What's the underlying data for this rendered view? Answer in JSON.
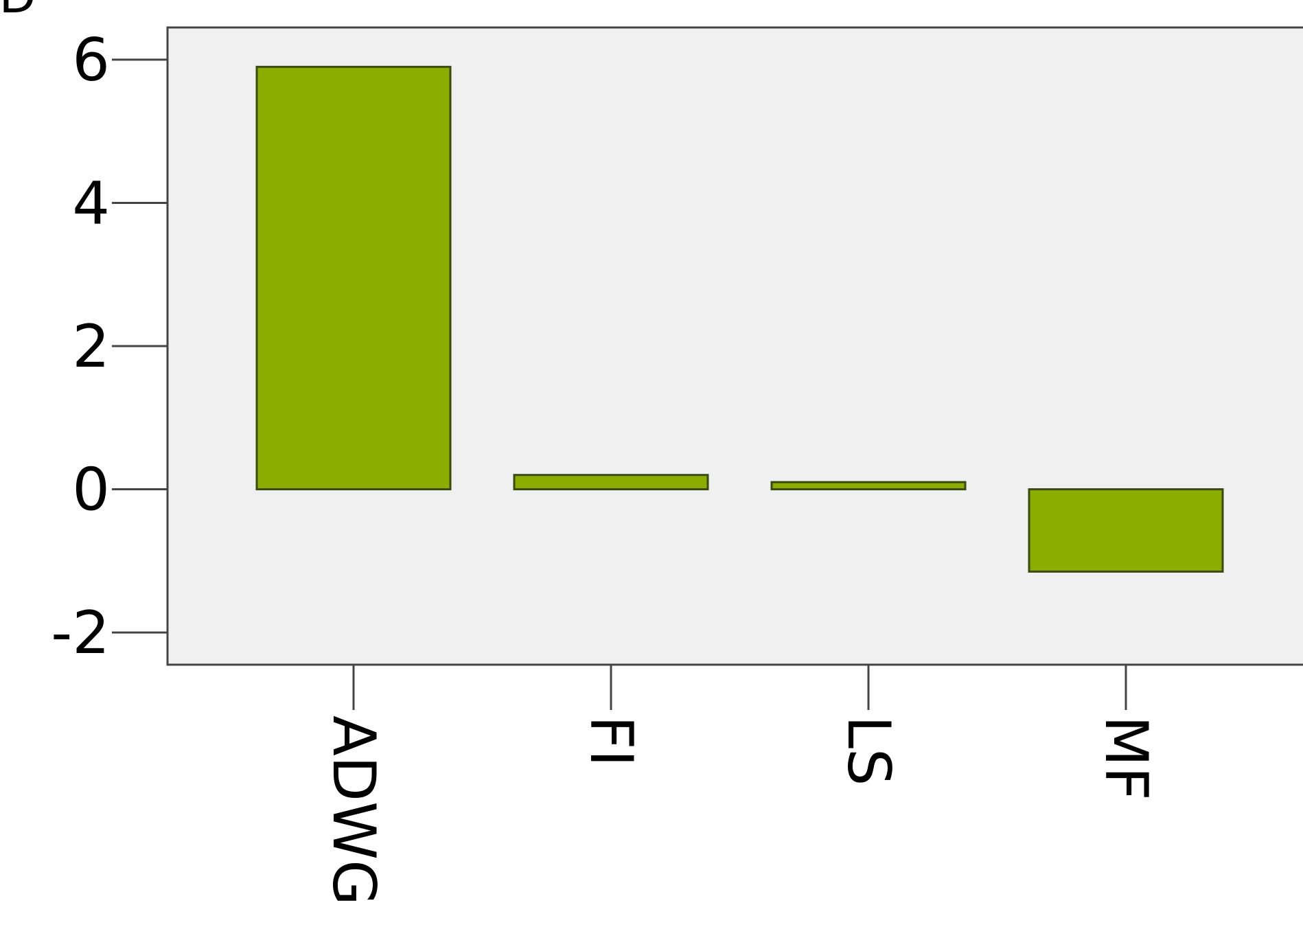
{
  "corner_label": "ID",
  "chart_data": {
    "type": "bar",
    "categories": [
      "ADWG",
      "FI",
      "LS",
      "MF"
    ],
    "values": [
      5.9,
      0.2,
      0.1,
      -1.15
    ],
    "yticks": [
      -2,
      0,
      2,
      4,
      6
    ],
    "ylim": [
      -2.45,
      6.45
    ],
    "grid": false,
    "title": "",
    "xlabel": "",
    "ylabel": "",
    "colors": {
      "bar_fill": "#8aad00",
      "bar_stroke": "#3a4a10",
      "plot_background": "#f0f0f0",
      "axis": "#444444"
    }
  }
}
